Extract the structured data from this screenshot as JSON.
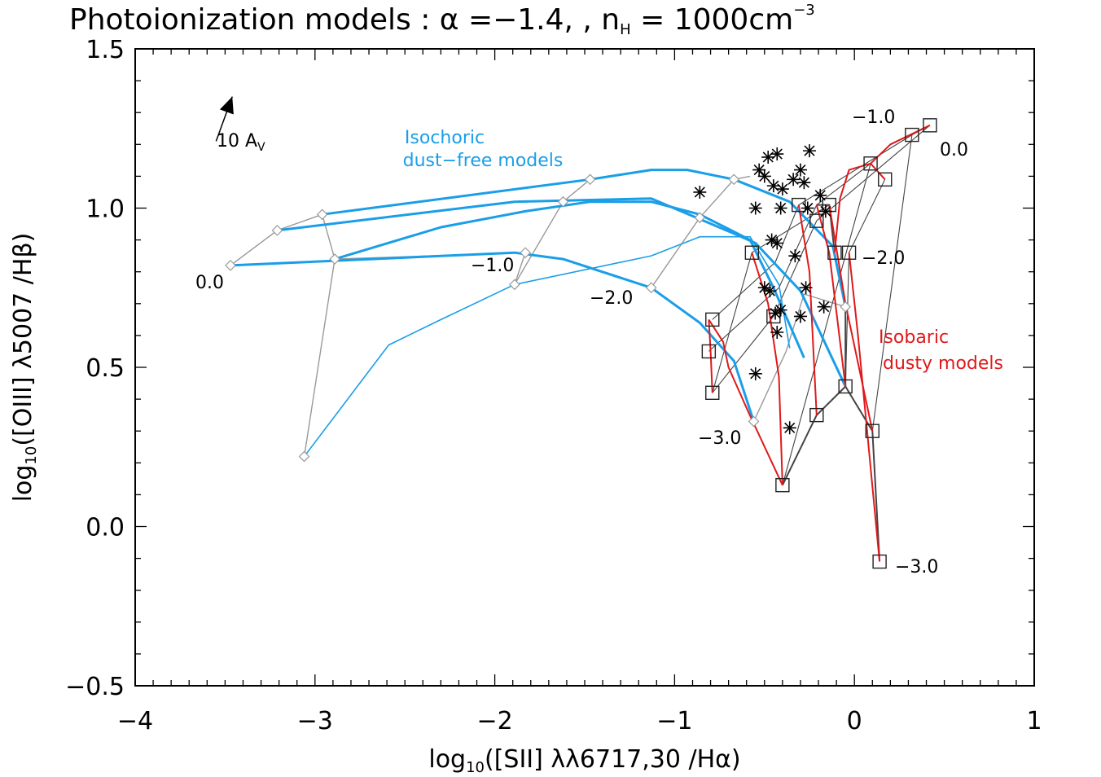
{
  "chart_data": {
    "type": "scatter",
    "title": "Photoionization models :  α =−1.4, , n",
    "title_sub": "H",
    "title_tail": " =  1000cm",
    "title_sup": "−3",
    "xlabel_pre": "log",
    "xlabel_sub": "10",
    "xlabel_post": "([SII] λλ6717,30 /Hα)",
    "ylabel_pre": "log",
    "ylabel_sub": "10",
    "ylabel_post": "([OIII] λ5007 /Hβ)",
    "xlim": [
      -4,
      1
    ],
    "ylim": [
      -0.5,
      1.5
    ],
    "xticks": [
      -4,
      -3,
      -2,
      -1,
      0,
      1
    ],
    "xtick_labels": [
      "−4",
      "−3",
      "−2",
      "−1",
      "0",
      "1"
    ],
    "yticks": [
      -0.5,
      0.0,
      0.5,
      1.0,
      1.5
    ],
    "ytick_labels": [
      "−0.5",
      "0.0",
      "0.5",
      "1.0",
      "1.5"
    ],
    "colors": {
      "isochoric": "#1a9ee8",
      "isobaric": "#e0191b",
      "grid_gray": "#999999",
      "dark_gray": "#444444",
      "black": "#000000"
    },
    "annotations": {
      "isochoric_line1": "Isochoric",
      "isochoric_line2": "dust−free models",
      "isobaric_line1": "Isobaric",
      "isobaric_line2": "dusty models",
      "av_label": "10 A",
      "av_sub": "V",
      "iso_labels": [
        "0.0",
        "−1.0",
        "−2.0",
        "−3.0"
      ],
      "dusty_labels": [
        "−1.0",
        "0.0",
        "−2.0",
        "−3.0"
      ]
    },
    "av_arrow": {
      "from": [
        -3.55,
        1.21
      ],
      "to": [
        -3.46,
        1.35
      ]
    },
    "isochoric_gray_sets": [
      [
        [
          -3.47,
          0.82
        ],
        [
          -3.21,
          0.93
        ],
        [
          -2.96,
          0.98
        ]
      ],
      [
        [
          -2.96,
          0.98
        ],
        [
          -2.89,
          0.84
        ],
        [
          -3.06,
          0.22
        ]
      ],
      [
        [
          -2.89,
          0.84
        ],
        [
          -1.83,
          0.86
        ],
        [
          -1.89,
          0.76
        ]
      ],
      [
        [
          -1.89,
          0.76
        ],
        [
          -1.62,
          1.02
        ],
        [
          -1.47,
          1.09
        ]
      ],
      [
        [
          -1.13,
          0.75
        ],
        [
          -0.86,
          0.97
        ],
        [
          -0.67,
          1.09
        ],
        [
          -0.58,
          1.1
        ]
      ],
      [
        [
          -0.56,
          0.33
        ],
        [
          -0.38,
          0.55
        ],
        [
          -0.28,
          0.73
        ],
        [
          -0.05,
          0.69
        ]
      ]
    ],
    "isochoric_blue_tracks": [
      {
        "points": [
          [
            -3.21,
            0.93
          ],
          [
            -1.89,
            1.02
          ],
          [
            -1.13,
            1.03
          ],
          [
            -0.67,
            0.92
          ],
          [
            -0.55,
            0.89
          ],
          [
            -0.3,
            0.74
          ],
          [
            -0.05,
            0.44
          ]
        ],
        "width": 3
      },
      {
        "points": [
          [
            -2.96,
            0.98
          ],
          [
            -1.47,
            1.09
          ],
          [
            -1.13,
            1.12
          ],
          [
            -0.93,
            1.12
          ],
          [
            -0.67,
            1.09
          ],
          [
            -0.36,
            1.02
          ],
          [
            -0.12,
            0.88
          ],
          [
            -0.05,
            0.69
          ]
        ],
        "width": 3
      },
      {
        "points": [
          [
            -3.47,
            0.82
          ],
          [
            -1.89,
            0.86
          ],
          [
            -1.62,
            0.84
          ],
          [
            -1.13,
            0.75
          ],
          [
            -0.86,
            0.64
          ],
          [
            -0.67,
            0.52
          ],
          [
            -0.56,
            0.33
          ]
        ],
        "width": 3
      },
      {
        "points": [
          [
            -2.89,
            0.84
          ],
          [
            -2.3,
            0.94
          ],
          [
            -1.83,
            0.99
          ],
          [
            -1.47,
            1.02
          ],
          [
            -1.13,
            1.02
          ],
          [
            -0.86,
            0.98
          ],
          [
            -0.58,
            0.9
          ],
          [
            -0.45,
            0.75
          ],
          [
            -0.28,
            0.53
          ]
        ],
        "width": 3
      },
      {
        "points": [
          [
            -3.06,
            0.22
          ],
          [
            -2.59,
            0.57
          ],
          [
            -2.3,
            0.65
          ],
          [
            -1.89,
            0.76
          ],
          [
            -1.13,
            0.85
          ],
          [
            -0.86,
            0.91
          ],
          [
            -0.58,
            0.91
          ],
          [
            -0.42,
            0.76
          ],
          [
            -0.36,
            0.56
          ]
        ],
        "width": 1.6
      }
    ],
    "isochoric_markers": [
      [
        -3.47,
        0.82
      ],
      [
        -3.21,
        0.93
      ],
      [
        -2.96,
        0.98
      ],
      [
        -2.89,
        0.84
      ],
      [
        -3.06,
        0.22
      ],
      [
        -1.83,
        0.86
      ],
      [
        -1.89,
        0.76
      ],
      [
        -1.62,
        1.02
      ],
      [
        -1.47,
        1.09
      ],
      [
        -1.13,
        0.75
      ],
      [
        -0.86,
        0.97
      ],
      [
        -0.67,
        1.09
      ],
      [
        -0.56,
        0.33
      ],
      [
        -0.05,
        0.69
      ]
    ],
    "isobaric_gray_sets": [
      [
        [
          -0.79,
          0.42
        ],
        [
          -0.57,
          0.86
        ],
        [
          -0.14,
          1.01
        ]
      ],
      [
        [
          -0.4,
          0.13
        ],
        [
          0.09,
          1.14
        ],
        [
          0.17,
          1.09
        ]
      ],
      [
        [
          0.1,
          0.3
        ],
        [
          0.32,
          1.23
        ],
        [
          0.42,
          1.26
        ]
      ],
      [
        [
          -0.81,
          0.55
        ],
        [
          -0.42,
          0.75
        ],
        [
          -0.21,
          1.01
        ],
        [
          0.09,
          1.14
        ]
      ],
      [
        [
          -0.79,
          0.65
        ],
        [
          -0.44,
          0.83
        ],
        [
          -0.31,
          1.01
        ],
        [
          0.32,
          1.23
        ]
      ],
      [
        [
          -0.79,
          0.42
        ],
        [
          -0.45,
          0.66
        ],
        [
          -0.21,
          0.96
        ],
        [
          0.42,
          1.26
        ]
      ],
      [
        [
          -0.21,
          0.35
        ],
        [
          -0.05,
          0.44
        ],
        [
          -0.03,
          0.86
        ],
        [
          0.17,
          1.09
        ]
      ]
    ],
    "isobaric_dark_lines": [
      [
        [
          -0.4,
          0.13
        ],
        [
          -0.21,
          0.35
        ],
        [
          -0.05,
          0.44
        ],
        [
          0.1,
          0.3
        ],
        [
          0.14,
          -0.11
        ]
      ],
      [
        [
          -0.21,
          1.01
        ],
        [
          -0.14,
          1.01
        ],
        [
          -0.11,
          0.86
        ],
        [
          -0.05,
          0.69
        ],
        [
          -0.05,
          0.44
        ]
      ]
    ],
    "isobaric_red_tracks": [
      [
        [
          -0.81,
          0.65
        ],
        [
          -0.73,
          0.58
        ],
        [
          -0.7,
          0.5
        ],
        [
          -0.59,
          0.36
        ],
        [
          -0.4,
          0.13
        ]
      ],
      [
        [
          -0.79,
          0.42
        ],
        [
          -0.8,
          0.55
        ],
        [
          -0.81,
          0.65
        ]
      ],
      [
        [
          -0.57,
          0.86
        ],
        [
          -0.48,
          0.7
        ],
        [
          -0.42,
          0.47
        ],
        [
          -0.4,
          0.13
        ]
      ],
      [
        [
          -0.31,
          1.01
        ],
        [
          -0.25,
          0.8
        ],
        [
          -0.21,
          0.35
        ]
      ],
      [
        [
          -0.21,
          1.01
        ],
        [
          -0.14,
          0.86
        ],
        [
          -0.05,
          0.44
        ]
      ],
      [
        [
          -0.14,
          1.01
        ],
        [
          -0.05,
          0.7
        ],
        [
          0.1,
          0.3
        ]
      ],
      [
        [
          -0.03,
          0.86
        ],
        [
          0.02,
          0.6
        ],
        [
          0.14,
          -0.11
        ]
      ],
      [
        [
          -0.11,
          0.86
        ],
        [
          -0.08,
          1.03
        ],
        [
          -0.03,
          1.12
        ],
        [
          0.09,
          1.14
        ],
        [
          0.17,
          1.09
        ]
      ],
      [
        [
          0.09,
          1.14
        ],
        [
          0.2,
          1.2
        ],
        [
          0.42,
          1.26
        ]
      ]
    ],
    "isobaric_markers": [
      [
        -0.79,
        0.42
      ],
      [
        -0.81,
        0.55
      ],
      [
        -0.79,
        0.65
      ],
      [
        -0.57,
        0.86
      ],
      [
        -0.4,
        0.13
      ],
      [
        -0.21,
        0.35
      ],
      [
        -0.05,
        0.44
      ],
      [
        0.1,
        0.3
      ],
      [
        0.14,
        -0.11
      ],
      [
        -0.45,
        0.66
      ],
      [
        -0.31,
        1.01
      ],
      [
        -0.21,
        0.96
      ],
      [
        -0.14,
        1.01
      ],
      [
        -0.11,
        0.86
      ],
      [
        -0.03,
        0.86
      ],
      [
        0.09,
        1.14
      ],
      [
        0.17,
        1.09
      ],
      [
        0.32,
        1.23
      ],
      [
        0.42,
        1.26
      ]
    ],
    "observed_points": [
      [
        -0.86,
        1.05
      ],
      [
        -0.53,
        1.12
      ],
      [
        -0.48,
        1.16
      ],
      [
        -0.43,
        1.17
      ],
      [
        -0.25,
        1.18
      ],
      [
        -0.5,
        1.1
      ],
      [
        -0.45,
        1.07
      ],
      [
        -0.4,
        1.06
      ],
      [
        -0.34,
        1.09
      ],
      [
        -0.3,
        1.12
      ],
      [
        -0.28,
        1.08
      ],
      [
        -0.55,
        1.0
      ],
      [
        -0.41,
        1.0
      ],
      [
        -0.26,
        1.0
      ],
      [
        -0.19,
        1.04
      ],
      [
        -0.16,
        0.99
      ],
      [
        -0.46,
        0.9
      ],
      [
        -0.43,
        0.89
      ],
      [
        -0.33,
        0.85
      ],
      [
        -0.5,
        0.75
      ],
      [
        -0.47,
        0.74
      ],
      [
        -0.27,
        0.75
      ],
      [
        -0.44,
        0.67
      ],
      [
        -0.3,
        0.66
      ],
      [
        -0.41,
        0.68
      ],
      [
        -0.43,
        0.61
      ],
      [
        -0.17,
        0.69
      ],
      [
        -0.55,
        0.48
      ],
      [
        -0.36,
        0.31
      ]
    ]
  }
}
